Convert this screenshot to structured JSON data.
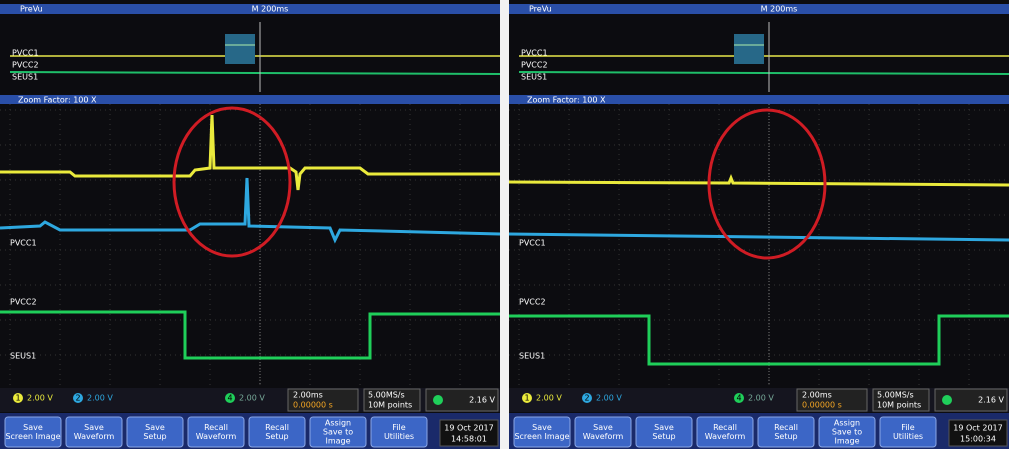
{
  "panels": [
    {
      "preview_title": "PreVu",
      "timebase": "M 200ms",
      "zoom": "Zoom Factor: 100 X",
      "channels": [
        "PVCC1",
        "PVCC2",
        "SEUS1"
      ],
      "channel_ids": [
        "1",
        "2",
        "4"
      ],
      "ch_scales": [
        "2.00 V",
        "2.00 V",
        "2.00 V"
      ],
      "horizontal": [
        "2.00ms",
        "0.00000 s"
      ],
      "acquisition": [
        "5.00MS/s",
        "10M points"
      ],
      "trigger": "2.16 V",
      "buttons": [
        [
          "Save",
          "Screen Image"
        ],
        [
          "Save",
          "Waveform"
        ],
        [
          "Save",
          "Setup"
        ],
        [
          "Recall",
          "Waveform"
        ],
        [
          "Recall",
          "Setup"
        ],
        [
          "Assign",
          "Save to",
          "Image"
        ],
        [
          "File",
          "Utilities"
        ]
      ],
      "date": "19 Oct 2017",
      "time": "14:58:01"
    },
    {
      "preview_title": "PreVu",
      "timebase": "M 200ms",
      "zoom": "Zoom Factor: 100 X",
      "channels": [
        "PVCC1",
        "PVCC2",
        "SEUS1"
      ],
      "channel_ids": [
        "1",
        "2",
        "4"
      ],
      "ch_scales": [
        "2.00 V",
        "2.00 V",
        "2.00 V"
      ],
      "horizontal": [
        "2.00ms",
        "0.00000 s"
      ],
      "acquisition": [
        "5.00MS/s",
        "10M points"
      ],
      "trigger": "2.16 V",
      "buttons": [
        [
          "Save",
          "Screen Image"
        ],
        [
          "Save",
          "Waveform"
        ],
        [
          "Save",
          "Setup"
        ],
        [
          "Recall",
          "Waveform"
        ],
        [
          "Recall",
          "Setup"
        ],
        [
          "Assign",
          "Save to",
          "Image"
        ],
        [
          "File",
          "Utilities"
        ]
      ],
      "date": "19 Oct 2017",
      "time": "15:00:34"
    }
  ]
}
